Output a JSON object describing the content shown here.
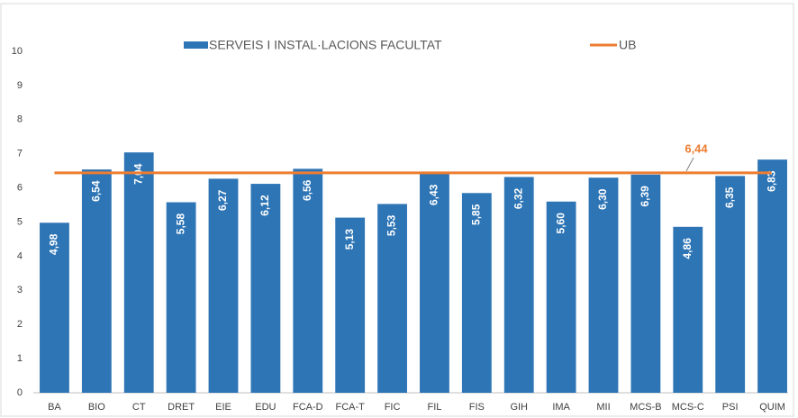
{
  "chart_data": {
    "type": "bar",
    "categories": [
      "BA",
      "BIO",
      "CT",
      "DRET",
      "EIE",
      "EDU",
      "FCA-D",
      "FCA-T",
      "FIC",
      "FIL",
      "FIS",
      "GIH",
      "IMA",
      "MII",
      "MCS-B",
      "MCS-C",
      "PSI",
      "QUIM"
    ],
    "series": [
      {
        "name": "SERVEIS I INSTAL·LACIONS FACULTAT",
        "color": "#2e75b6",
        "values": [
          4.98,
          6.54,
          7.04,
          5.58,
          6.27,
          6.12,
          6.56,
          5.13,
          5.53,
          6.43,
          5.85,
          6.32,
          5.6,
          6.3,
          6.39,
          4.86,
          6.35,
          6.83
        ],
        "value_labels": [
          "4,98",
          "6,54",
          "7,04",
          "5,58",
          "6,27",
          "6,12",
          "6,56",
          "5,13",
          "5,53",
          "6,43",
          "5,85",
          "6,32",
          "5,60",
          "6,30",
          "6,39",
          "4,86",
          "6,35",
          "6,83"
        ]
      }
    ],
    "reference_line": {
      "name": "UB",
      "color": "#ed7d31",
      "value": 6.44,
      "value_label": "6,44"
    },
    "ylim": [
      0,
      10
    ],
    "yticks": [
      0,
      1,
      2,
      3,
      4,
      5,
      6,
      7,
      8,
      9,
      10
    ],
    "grid": false
  }
}
